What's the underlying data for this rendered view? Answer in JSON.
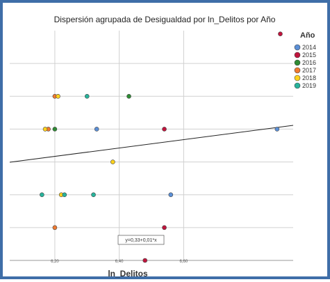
{
  "chart_data": {
    "type": "scatter",
    "title": "Dispersión agrupada de Desigualdad por ln_Delitos por Año",
    "xlabel": "ln_Delitos",
    "ylabel": "",
    "xlim": [
      6.06,
      6.94
    ],
    "ylim": [
      0,
      7
    ],
    "x_ticks": [
      {
        "value": 6.2,
        "label": "6,20"
      },
      {
        "value": 6.4,
        "label": "6,40"
      },
      {
        "value": 6.6,
        "label": "6,60"
      }
    ],
    "legend_title": "Año",
    "legend_position": "right",
    "series": [
      {
        "name": "2014",
        "color": "#5b8fd6",
        "points": [
          [
            6.33,
            4
          ],
          [
            6.56,
            2
          ],
          [
            6.89,
            4
          ]
        ]
      },
      {
        "name": "2015",
        "color": "#c0143c",
        "points": [
          [
            6.9,
            6.9
          ],
          [
            6.54,
            4
          ],
          [
            6.54,
            1
          ],
          [
            6.48,
            0
          ]
        ]
      },
      {
        "name": "2016",
        "color": "#2e8b34",
        "points": [
          [
            6.43,
            5
          ],
          [
            6.2,
            4
          ]
        ]
      },
      {
        "name": "2017",
        "color": "#f07a30",
        "points": [
          [
            6.2,
            5
          ],
          [
            6.18,
            4
          ],
          [
            6.2,
            1
          ]
        ]
      },
      {
        "name": "2018",
        "color": "#ffd21c",
        "points": [
          [
            6.21,
            5
          ],
          [
            6.17,
            4
          ],
          [
            6.38,
            3
          ],
          [
            6.22,
            2
          ]
        ]
      },
      {
        "name": "2019",
        "color": "#27b39b",
        "points": [
          [
            6.3,
            5
          ],
          [
            6.16,
            2
          ],
          [
            6.23,
            2
          ],
          [
            6.32,
            2
          ]
        ]
      }
    ],
    "fit_line": {
      "intercept": 0.33,
      "slope": 0.01
    },
    "fit_label": "y=0,33+0,01*x",
    "grid": true
  }
}
